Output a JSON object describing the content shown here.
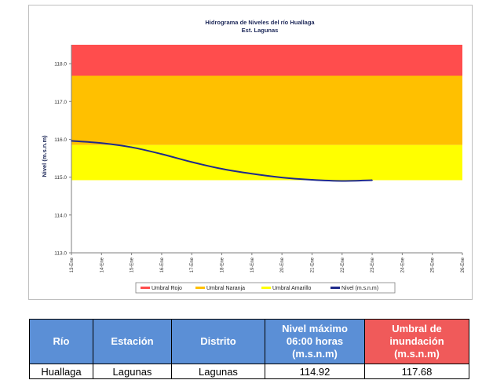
{
  "chart_data": {
    "type": "line",
    "title": "Hidrograma de Niveles del río Huallaga",
    "subtitle": "Est. Lagunas",
    "ylabel": "Nivel (m.s.n.m)",
    "xlabel": "",
    "ylim": [
      113.0,
      118.5
    ],
    "y_ticks": [
      "113.0",
      "114.0",
      "115.0",
      "116.0",
      "117.0",
      "118.0"
    ],
    "categories": [
      "13-Ene",
      "14-Ene",
      "15-Ene",
      "16-Ene",
      "17-Ene",
      "18-Ene",
      "19-Ene",
      "20-Ene",
      "21-Ene",
      "22-Ene",
      "23-Ene",
      "24-Ene",
      "25-Ene",
      "26-Ene"
    ],
    "bands": [
      {
        "name": "Umbral Rojo",
        "from": 117.68,
        "to": 118.5,
        "color": "#ff4d4d"
      },
      {
        "name": "Umbral Naranja",
        "from": 115.85,
        "to": 117.68,
        "color": "#ffc000"
      },
      {
        "name": "Umbral Amarillo",
        "from": 114.92,
        "to": 115.85,
        "color": "#ffff00"
      }
    ],
    "series": [
      {
        "name": "Nivel (m.s.n.m)",
        "color": "#1f2a8a",
        "x": [
          0,
          1,
          2,
          3,
          4,
          5,
          6,
          7,
          8,
          9,
          10
        ],
        "values": [
          115.96,
          115.9,
          115.79,
          115.61,
          115.4,
          115.22,
          115.09,
          114.99,
          114.93,
          114.9,
          114.92
        ]
      }
    ],
    "legend_position": "bottom",
    "legend": [
      "Umbral Rojo",
      "Umbral Naranja",
      "Umbral Amarillo",
      "Nivel (m.s.n.m)"
    ]
  },
  "table": {
    "headers": [
      "Río",
      "Estación",
      "Distrito",
      "Nivel máximo 06:00 horas (m.s.n.m)",
      "Umbral de inundación (m.s.n.m)"
    ],
    "row": [
      "Huallaga",
      "Lagunas",
      "Lagunas",
      "114.92",
      "117.68"
    ]
  }
}
